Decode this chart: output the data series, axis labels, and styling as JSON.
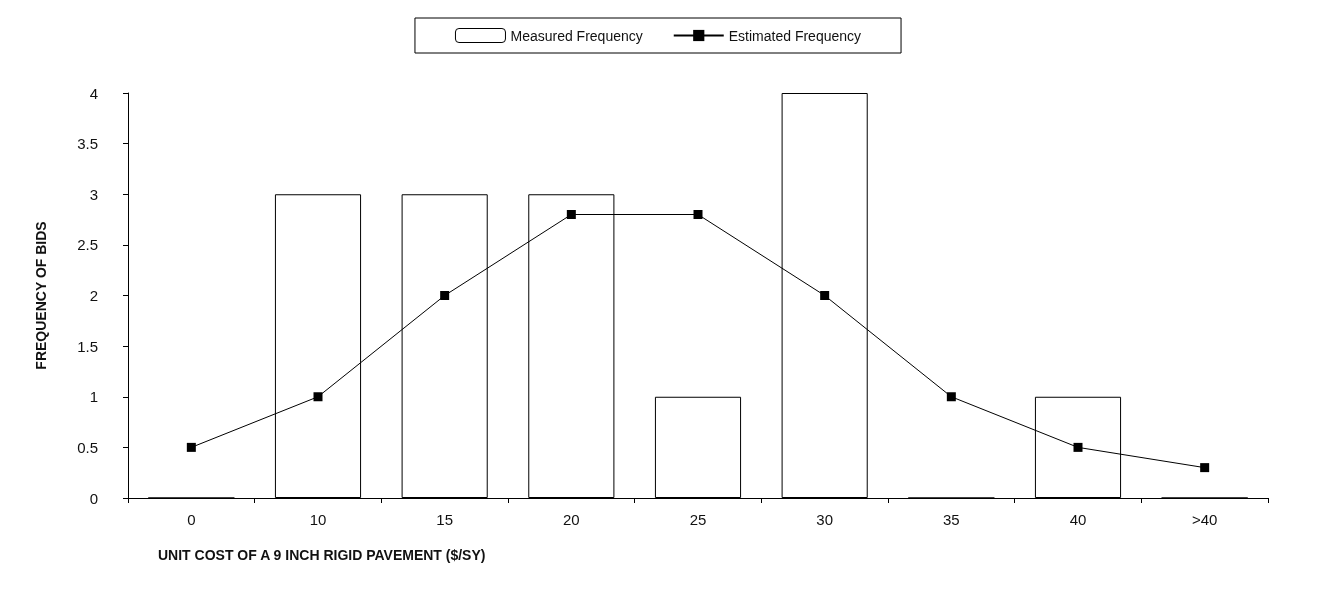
{
  "chart_data": {
    "type": "bar",
    "xlabel": "UNIT COST OF A 9 INCH RIGID PAVEMENT ($/SY)",
    "ylabel": "FREQUENCY OF BIDS",
    "categories": [
      "0",
      "10",
      "15",
      "20",
      "25",
      "30",
      "35",
      "40",
      ">40"
    ],
    "series": [
      {
        "name": "Measured Frequency",
        "color": "#ffffff",
        "values": [
          0,
          3,
          3,
          3,
          1,
          4,
          0,
          1,
          0
        ]
      },
      {
        "name": "Estimated Frequency",
        "type": "line",
        "color": "#000000",
        "marker": "square",
        "values": [
          0.5,
          1,
          2,
          2.8,
          2.8,
          2,
          1,
          0.5,
          0.3
        ]
      }
    ],
    "ylim": [
      0,
      4
    ],
    "yticks": [
      0,
      0.5,
      1,
      1.5,
      2,
      2.5,
      3,
      3.5,
      4
    ],
    "grid": false,
    "legend": "top"
  }
}
